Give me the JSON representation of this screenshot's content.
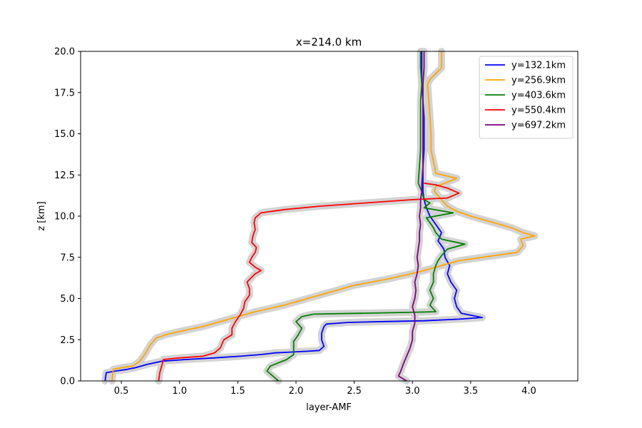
{
  "chart_data": {
    "type": "line",
    "title": "x=214.0 km",
    "xlabel": "layer-AMF",
    "ylabel": "z [km]",
    "xlim": [
      0.15,
      4.42
    ],
    "ylim": [
      0,
      20
    ],
    "xticks": [
      "0.5",
      "1.0",
      "1.5",
      "2.0",
      "2.5",
      "3.0",
      "3.5",
      "4.0"
    ],
    "yticks": [
      "0.0",
      "2.5",
      "5.0",
      "7.5",
      "10.0",
      "12.5",
      "15.0",
      "17.5",
      "20.0"
    ],
    "grid": false,
    "legend_position": "top-right",
    "uncertainty_band_color": "#d3d3d3",
    "series": [
      {
        "name": "y=132.1km",
        "color": "#0000ff",
        "x": [
          0.36,
          0.37,
          0.45,
          0.55,
          0.62,
          0.72,
          0.85,
          1.05,
          1.3,
          1.52,
          1.7,
          1.82,
          1.95,
          2.1,
          2.2,
          2.24,
          2.22,
          2.22,
          2.24,
          2.26,
          2.45,
          2.75,
          3.1,
          3.4,
          3.6,
          3.42,
          3.38,
          3.36,
          3.38,
          3.33,
          3.3,
          3.32,
          3.28,
          3.27,
          3.22,
          3.25,
          3.2,
          3.15,
          3.12,
          3.1,
          3.09,
          3.09,
          3.09,
          3.09,
          3.1,
          3.1,
          3.1,
          3.09,
          3.08,
          3.08
        ],
        "y": [
          0,
          0.5,
          0.6,
          0.7,
          0.8,
          1.0,
          1.2,
          1.3,
          1.4,
          1.5,
          1.6,
          1.7,
          1.75,
          1.8,
          1.85,
          2.1,
          2.5,
          2.9,
          3.3,
          3.45,
          3.55,
          3.6,
          3.65,
          3.75,
          3.85,
          4.1,
          4.5,
          5.0,
          5.5,
          6.0,
          6.5,
          7.0,
          7.5,
          8.0,
          8.5,
          9.0,
          9.5,
          10.0,
          10.5,
          11.0,
          11.5,
          12.0,
          12.5,
          13.0,
          14.0,
          15.0,
          16.0,
          17.0,
          18.0,
          20.0
        ]
      },
      {
        "name": "y=256.9km",
        "color": "#ffa500",
        "x": [
          0.42,
          0.43,
          0.5,
          0.6,
          0.66,
          0.7,
          0.75,
          0.8,
          0.88,
          1.0,
          1.2,
          1.45,
          1.65,
          1.9,
          2.2,
          2.5,
          2.8,
          3.05,
          3.2,
          3.3,
          3.4,
          3.5,
          3.6,
          3.7,
          3.9,
          3.95,
          3.93,
          4.05,
          3.95,
          3.85,
          3.7,
          3.5,
          3.38,
          3.3,
          3.25,
          3.19,
          3.2,
          3.28,
          3.38,
          3.2,
          3.19,
          3.16,
          3.16,
          3.15,
          3.14,
          3.13,
          3.15,
          3.25,
          3.25,
          3.25
        ],
        "y": [
          0,
          0.7,
          0.8,
          0.9,
          1.2,
          1.6,
          2.2,
          2.6,
          2.8,
          3.0,
          3.3,
          3.8,
          4.2,
          4.6,
          5.2,
          5.8,
          6.2,
          6.6,
          6.9,
          7.1,
          7.3,
          7.4,
          7.5,
          7.6,
          7.8,
          8.2,
          8.6,
          8.8,
          9.0,
          9.3,
          9.6,
          10.0,
          10.3,
          10.6,
          11.0,
          11.5,
          11.8,
          12.0,
          12.3,
          12.6,
          13.0,
          14.0,
          15.0,
          16.0,
          17.0,
          18.0,
          18.3,
          19.0,
          19.5,
          20.0
        ]
      },
      {
        "name": "y=403.6km",
        "color": "#008000",
        "x": [
          1.85,
          1.8,
          1.75,
          1.78,
          1.85,
          1.92,
          1.98,
          1.98,
          1.98,
          2.02,
          2.05,
          2.0,
          2.05,
          2.15,
          2.5,
          2.9,
          3.2,
          3.15,
          3.18,
          3.15,
          3.18,
          3.18,
          3.2,
          3.22,
          3.25,
          3.3,
          3.45,
          3.25,
          3.2,
          3.18,
          3.15,
          3.12,
          3.35,
          3.1,
          3.15,
          3.1,
          3.08,
          3.05,
          3.06,
          3.07,
          3.07,
          3.07,
          3.07,
          3.08,
          3.07,
          3.07,
          3.07
        ],
        "y": [
          0,
          0.3,
          0.6,
          0.9,
          1.1,
          1.3,
          1.6,
          2.0,
          2.4,
          2.8,
          3.2,
          3.6,
          3.9,
          4.05,
          4.1,
          4.15,
          4.2,
          4.6,
          5.0,
          5.5,
          6.0,
          6.5,
          7.0,
          7.3,
          7.6,
          8.0,
          8.3,
          8.6,
          9.0,
          9.3,
          9.6,
          9.9,
          10.2,
          10.5,
          10.8,
          11.0,
          11.5,
          12.0,
          13.0,
          14.0,
          15.0,
          16.0,
          17.0,
          18.0,
          19.0,
          19.5,
          20.0
        ]
      },
      {
        "name": "y=550.4km",
        "color": "#ff0000",
        "x": [
          0.82,
          0.83,
          0.85,
          0.86,
          1.0,
          1.2,
          1.3,
          1.35,
          1.38,
          1.45,
          1.45,
          1.48,
          1.52,
          1.55,
          1.56,
          1.6,
          1.6,
          1.58,
          1.62,
          1.65,
          1.7,
          1.65,
          1.6,
          1.62,
          1.65,
          1.66,
          1.62,
          1.63,
          1.65,
          1.64,
          1.65,
          1.7,
          1.9,
          2.2,
          2.6,
          3.0,
          3.3,
          3.4,
          3.3,
          3.2,
          3.1
        ],
        "y": [
          0,
          0.5,
          1.0,
          1.3,
          1.4,
          1.5,
          1.7,
          2.0,
          2.5,
          2.8,
          3.2,
          3.6,
          4.0,
          4.4,
          4.8,
          5.2,
          5.6,
          6.0,
          6.3,
          6.5,
          6.7,
          6.9,
          7.2,
          7.5,
          7.8,
          8.1,
          8.4,
          8.8,
          9.2,
          9.6,
          9.9,
          10.2,
          10.4,
          10.6,
          10.8,
          11.0,
          11.1,
          11.4,
          11.7,
          11.9,
          12.0
        ]
      },
      {
        "name": "y=697.2km",
        "color": "#800080",
        "x": [
          2.95,
          2.88,
          2.9,
          2.92,
          2.95,
          2.98,
          3.0,
          3.0,
          3.02,
          3.02,
          3.0,
          3.02,
          3.03,
          3.02,
          3.04,
          3.05,
          3.04,
          3.05,
          3.06,
          3.06,
          3.07,
          3.06,
          3.07,
          3.07,
          3.08,
          3.08,
          3.09,
          3.09,
          3.09,
          3.09,
          3.09,
          3.09,
          3.1,
          3.1,
          3.1
        ],
        "y": [
          0,
          0.3,
          0.6,
          1.0,
          1.5,
          2.0,
          2.5,
          3.0,
          3.5,
          4.0,
          4.5,
          5.0,
          5.5,
          6.0,
          6.5,
          7.0,
          7.5,
          8.0,
          8.5,
          9.0,
          9.5,
          10.0,
          10.5,
          11.0,
          11.5,
          12.0,
          13.0,
          14.0,
          15.0,
          16.0,
          17.0,
          18.0,
          19.0,
          19.5,
          20.0
        ]
      }
    ]
  }
}
